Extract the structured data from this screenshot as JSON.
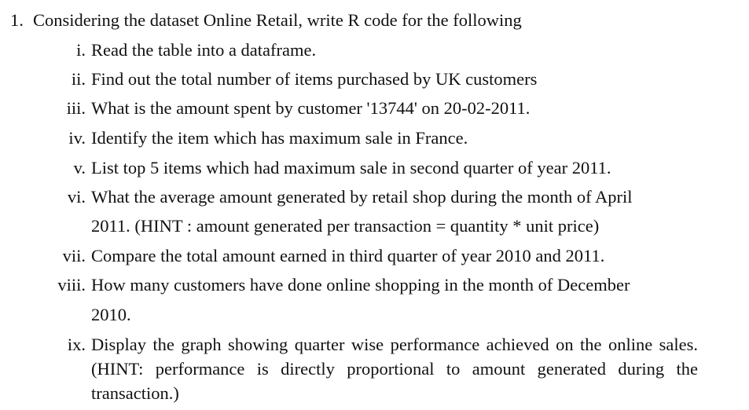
{
  "question": {
    "number": "1.",
    "text": "Considering the dataset Online Retail, write R code for the following",
    "items": [
      {
        "num": "i.",
        "text": "Read the table into a dataframe."
      },
      {
        "num": "ii.",
        "text": "Find out the total number of items purchased by UK customers"
      },
      {
        "num": "iii.",
        "text": "What is the amount spent by customer '13744' on 20-02-2011."
      },
      {
        "num": "iv.",
        "text": "Identify the item which has maximum sale in France."
      },
      {
        "num": "v.",
        "text": "List top 5 items which had maximum sale in second quarter of year 2011."
      },
      {
        "num": "vi.",
        "line1": "What the average amount generated by retail shop during the month of April",
        "line2": "2011. (HINT : amount generated per transaction = quantity * unit price)"
      },
      {
        "num": "vii.",
        "text": "Compare the total amount earned in third quarter of year 2010 and 2011."
      },
      {
        "num": "viii.",
        "line1": "How many customers have done online shopping in the month of December",
        "line2": "2010."
      },
      {
        "num": "ix.",
        "text": "Display the graph showing quarter wise performance achieved on the online sales. (HINT: performance is directly proportional to amount generated during the transaction.)"
      }
    ]
  }
}
